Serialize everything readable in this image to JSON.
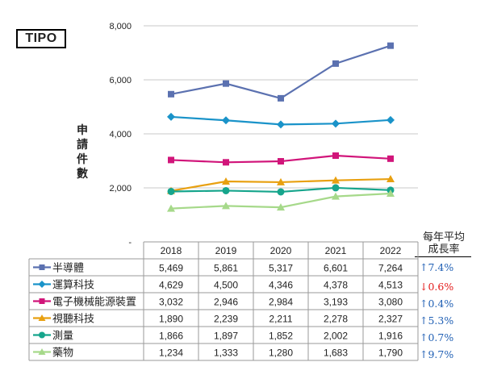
{
  "brand": "TIPO",
  "ylabel_chars": [
    "申",
    "請",
    "件",
    "數"
  ],
  "growth_header": [
    "每年平均",
    "成長率"
  ],
  "chart_data": {
    "type": "line",
    "title": "",
    "xlabel": "",
    "ylabel": "申請件數",
    "ylim": [
      0,
      8000
    ],
    "yticks": [
      {
        "value": 0,
        "label": "-"
      },
      {
        "value": 2000,
        "label": "2,000"
      },
      {
        "value": 4000,
        "label": "4,000"
      },
      {
        "value": 6000,
        "label": "6,000"
      },
      {
        "value": 8000,
        "label": "8,000"
      }
    ],
    "categories": [
      "2018",
      "2019",
      "2020",
      "2021",
      "2022"
    ],
    "grid": true,
    "legend_placement": "table-left",
    "series": [
      {
        "name": "半導體",
        "color": "#5b71b0",
        "marker": "square",
        "values": [
          5469,
          5861,
          5317,
          6601,
          7264
        ],
        "labels": [
          "5,469",
          "5,861",
          "5,317",
          "6,601",
          "7,264"
        ],
        "growth": "↑7.4%",
        "growth_color": "#1f5fb4"
      },
      {
        "name": "運算科技",
        "color": "#1a93c9",
        "marker": "diamond",
        "values": [
          4629,
          4500,
          4346,
          4378,
          4513
        ],
        "labels": [
          "4,629",
          "4,500",
          "4,346",
          "4,378",
          "4,513"
        ],
        "growth": "↓0.6%",
        "growth_color": "#e31b1b"
      },
      {
        "name": "電子機械能源裝置",
        "color": "#d1157a",
        "marker": "square",
        "values": [
          3032,
          2946,
          2984,
          3193,
          3080
        ],
        "labels": [
          "3,032",
          "2,946",
          "2,984",
          "3,193",
          "3,080"
        ],
        "growth": "↑0.4%",
        "growth_color": "#1f5fb4"
      },
      {
        "name": "視聽科技",
        "color": "#e8a010",
        "marker": "triangle",
        "values": [
          1890,
          2239,
          2211,
          2278,
          2327
        ],
        "labels": [
          "1,890",
          "2,239",
          "2,211",
          "2,278",
          "2,327"
        ],
        "growth": "↑5.3%",
        "growth_color": "#1f5fb4"
      },
      {
        "name": "測量",
        "color": "#16a58c",
        "marker": "circle",
        "values": [
          1866,
          1897,
          1852,
          2002,
          1916
        ],
        "labels": [
          "1,866",
          "1,897",
          "1,852",
          "2,002",
          "1,916"
        ],
        "growth": "↑0.7%",
        "growth_color": "#1f5fb4"
      },
      {
        "name": "藥物",
        "color": "#a6d98a",
        "marker": "triangle",
        "values": [
          1234,
          1333,
          1280,
          1683,
          1790
        ],
        "labels": [
          "1,234",
          "1,333",
          "1,280",
          "1,683",
          "1,790"
        ],
        "growth": "↑9.7%",
        "growth_color": "#1f5fb4"
      }
    ]
  }
}
